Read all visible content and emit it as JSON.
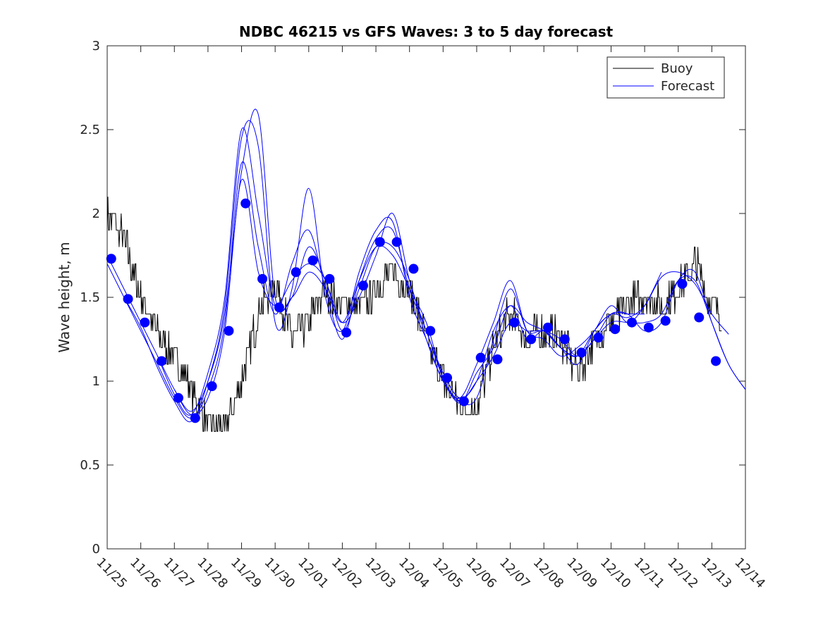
{
  "chart_data": {
    "type": "line",
    "title": "NDBC 46215 vs GFS Waves: 3 to 5 day forecast",
    "ylabel": "Wave height, m",
    "xlabel": "",
    "xlim": [
      0,
      19
    ],
    "ylim": [
      0,
      3
    ],
    "y_ticks": [
      {
        "value": 0,
        "label": "0"
      },
      {
        "value": 0.5,
        "label": "0.5"
      },
      {
        "value": 1,
        "label": "1"
      },
      {
        "value": 1.5,
        "label": "1.5"
      },
      {
        "value": 2,
        "label": "2"
      },
      {
        "value": 2.5,
        "label": "2.5"
      },
      {
        "value": 3,
        "label": "3"
      }
    ],
    "x_ticks": [
      {
        "value": 0,
        "label": "11/25"
      },
      {
        "value": 1,
        "label": "11/26"
      },
      {
        "value": 2,
        "label": "11/27"
      },
      {
        "value": 3,
        "label": "11/28"
      },
      {
        "value": 4,
        "label": "11/29"
      },
      {
        "value": 5,
        "label": "11/30"
      },
      {
        "value": 6,
        "label": "12/01"
      },
      {
        "value": 7,
        "label": "12/02"
      },
      {
        "value": 8,
        "label": "12/03"
      },
      {
        "value": 9,
        "label": "12/04"
      },
      {
        "value": 10,
        "label": "12/05"
      },
      {
        "value": 11,
        "label": "12/06"
      },
      {
        "value": 12,
        "label": "12/07"
      },
      {
        "value": 13,
        "label": "12/08"
      },
      {
        "value": 14,
        "label": "12/09"
      },
      {
        "value": 15,
        "label": "12/10"
      },
      {
        "value": 16,
        "label": "12/11"
      },
      {
        "value": 17,
        "label": "12/12"
      },
      {
        "value": 18,
        "label": "12/13"
      },
      {
        "value": 19,
        "label": "12/14"
      }
    ],
    "legend": {
      "position": "top-right",
      "entries": [
        {
          "label": "Buoy",
          "color": "#000000"
        },
        {
          "label": "Forecast",
          "color": "#0000ff"
        }
      ]
    },
    "buoy_key_points": {
      "x": [
        0,
        0.5,
        1,
        1.5,
        2,
        2.5,
        3,
        3.5,
        4,
        4.5,
        5,
        5.5,
        6,
        6.5,
        7,
        7.5,
        8,
        8.5,
        9,
        9.5,
        10,
        10.5,
        11,
        11.5,
        12,
        12.5,
        13,
        13.5,
        14,
        14.5,
        15,
        15.5,
        16,
        16.5,
        17,
        17.5,
        18,
        18.3
      ],
      "y": [
        2.0,
        1.85,
        1.5,
        1.3,
        1.15,
        0.95,
        0.75,
        0.72,
        1.0,
        1.4,
        1.6,
        1.25,
        1.35,
        1.55,
        1.45,
        1.45,
        1.55,
        1.65,
        1.55,
        1.25,
        1.0,
        0.85,
        0.85,
        1.2,
        1.4,
        1.25,
        1.3,
        1.25,
        1.05,
        1.25,
        1.35,
        1.45,
        1.5,
        1.45,
        1.55,
        1.7,
        1.45,
        1.35
      ],
      "noise_amplitude": 0.1
    },
    "forecast_dots": {
      "x": [
        0.12,
        0.62,
        1.12,
        1.62,
        2.12,
        2.62,
        3.12,
        3.62,
        4.12,
        4.62,
        5.12,
        5.62,
        6.12,
        6.62,
        7.12,
        7.62,
        8.12,
        8.62,
        9.12,
        9.62,
        10.12,
        10.62,
        11.12,
        11.62,
        12.12,
        12.62,
        13.12,
        13.62,
        14.12,
        14.62,
        15.12,
        15.62,
        16.12,
        16.62,
        17.12,
        17.62,
        18.12
      ],
      "y": [
        1.73,
        1.49,
        1.35,
        1.12,
        0.9,
        0.78,
        0.97,
        1.3,
        2.06,
        1.61,
        1.44,
        1.65,
        1.72,
        1.61,
        1.29,
        1.57,
        1.83,
        1.83,
        1.67,
        1.3,
        1.02,
        0.88,
        1.14,
        1.13,
        1.35,
        1.25,
        1.32,
        1.25,
        1.17,
        1.26,
        1.31,
        1.35,
        1.32,
        1.36,
        1.58,
        1.38,
        1.12
      ]
    },
    "series": [
      {
        "name": "Forecast",
        "x": [
          0,
          0.5,
          1,
          1.5,
          2,
          2.5,
          3,
          3.5,
          4,
          4.5,
          5,
          5.5,
          6,
          6.5,
          7,
          7.5,
          8,
          8.5,
          9,
          9.5,
          10,
          10.5,
          11,
          11.5,
          12,
          12.5,
          13,
          13.5,
          14,
          14.5,
          15,
          15.5,
          16,
          16.5,
          17,
          17.5,
          18,
          18.5,
          19
        ],
        "y": [
          1.75,
          1.55,
          1.35,
          1.15,
          0.95,
          0.8,
          0.9,
          1.3,
          2.2,
          1.65,
          1.45,
          1.6,
          1.7,
          1.6,
          1.3,
          1.55,
          1.8,
          1.8,
          1.6,
          1.25,
          1.0,
          0.88,
          1.0,
          1.15,
          1.35,
          1.3,
          1.3,
          1.25,
          1.15,
          1.25,
          1.35,
          1.35,
          1.35,
          1.4,
          1.6,
          1.6,
          1.35,
          1.1,
          0.95
        ]
      },
      {
        "name": "Forecast",
        "x": [
          0,
          0.5,
          1,
          1.5,
          2,
          2.5,
          3,
          3.5,
          4,
          4.5,
          5,
          5.5,
          6,
          6.5,
          7,
          7.5,
          8,
          8.5,
          9,
          9.5,
          10,
          10.5,
          11,
          11.5,
          12,
          12.5,
          13,
          13.5,
          14,
          14.5,
          15,
          15.5,
          16,
          16.5,
          17,
          17.5,
          18,
          18.5,
          19
        ],
        "y": [
          1.7,
          1.5,
          1.3,
          1.1,
          0.9,
          0.78,
          0.95,
          1.35,
          2.3,
          1.8,
          1.4,
          1.7,
          1.9,
          1.55,
          1.25,
          1.6,
          1.85,
          1.9,
          1.55,
          1.3,
          1.02,
          0.87,
          1.05,
          1.2,
          1.45,
          1.25,
          1.3,
          1.2,
          1.1,
          1.3,
          1.4,
          1.4,
          1.3,
          1.35,
          1.6,
          1.65,
          1.35,
          1.1,
          0.95
        ]
      },
      {
        "name": "Forecast",
        "x": [
          0.5,
          1,
          1.5,
          2,
          2.5,
          3,
          3.5,
          4,
          4.5,
          5,
          5.5,
          6,
          6.5,
          7,
          7.5,
          8,
          8.5,
          9,
          9.5,
          10,
          10.5,
          11,
          11.5,
          12,
          12.5,
          13,
          13.5,
          14,
          14.5,
          15,
          15.5,
          16,
          16.5
        ],
        "y": [
          1.5,
          1.32,
          1.08,
          0.88,
          0.76,
          1.0,
          1.45,
          2.45,
          2.4,
          1.35,
          1.55,
          2.15,
          1.5,
          1.3,
          1.65,
          1.9,
          1.95,
          1.5,
          1.25,
          1.0,
          0.9,
          1.1,
          1.35,
          1.6,
          1.3,
          1.25,
          1.15,
          1.2,
          1.3,
          1.45,
          1.35,
          1.45,
          1.65
        ]
      },
      {
        "name": "Forecast",
        "x": [
          1.5,
          2,
          2.5,
          3,
          3.5,
          4,
          4.5,
          5,
          5.5,
          6,
          6.5,
          7,
          7.5,
          8,
          8.5,
          9,
          9.5,
          10,
          10.5,
          11,
          11.5,
          12,
          12.5,
          13,
          13.5,
          14,
          14.5,
          15,
          15.5,
          16
        ],
        "y": [
          1.15,
          0.92,
          0.8,
          1.05,
          1.5,
          2.5,
          2.0,
          1.45,
          1.5,
          1.8,
          1.6,
          1.35,
          1.5,
          1.75,
          2.0,
          1.6,
          1.3,
          1.05,
          0.9,
          1.0,
          1.3,
          1.45,
          1.35,
          1.3,
          1.2,
          1.15,
          1.25,
          1.4,
          1.4,
          1.4
        ]
      },
      {
        "name": "Forecast",
        "x": [
          2,
          2.5,
          3,
          3.5,
          4,
          4.5,
          5,
          5.5,
          6,
          6.5,
          7,
          7.5,
          8,
          8.5,
          9,
          9.5,
          10,
          10.5,
          11,
          11.5,
          12,
          12.5,
          13,
          13.5,
          14,
          14.5,
          15,
          15.5,
          16,
          16.5,
          17,
          17.5,
          18,
          18.5
        ],
        "y": [
          0.95,
          0.82,
          1.0,
          1.4,
          2.25,
          2.59,
          1.5,
          1.5,
          1.65,
          1.55,
          1.35,
          1.6,
          1.8,
          1.75,
          1.55,
          1.35,
          1.02,
          0.88,
          0.9,
          1.25,
          1.55,
          1.3,
          1.3,
          1.2,
          1.15,
          1.3,
          1.4,
          1.38,
          1.45,
          1.62,
          1.65,
          1.58,
          1.4,
          1.28
        ]
      }
    ]
  }
}
